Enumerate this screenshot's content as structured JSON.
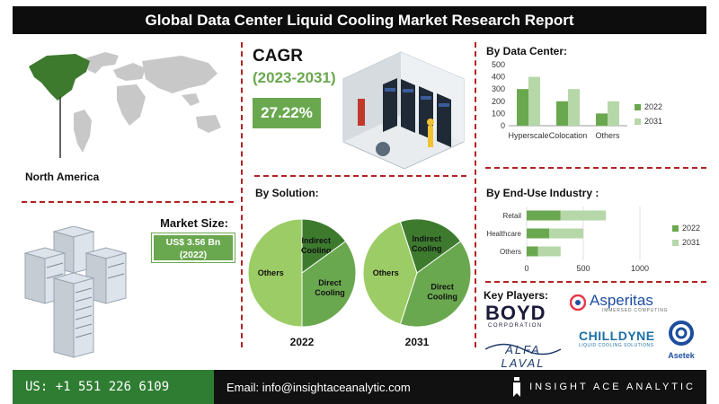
{
  "title": "Global Data Center Liquid Cooling Market Research Report",
  "region": {
    "label": "North America"
  },
  "cagr": {
    "title": "CAGR",
    "period": "(2023-2031)",
    "value": "27.22%"
  },
  "market_size": {
    "title": "Market Size:",
    "value_line1": "US$ 3.56 Bn",
    "value_line2": "(2022)"
  },
  "colors": {
    "dark_green": "#3d7a2e",
    "mid_green": "#6aa84f",
    "light_green": "#9ccc65",
    "pale_green": "#b6d7a8",
    "divider": "#b22222"
  },
  "by_data_center": {
    "title": "By Data Center:",
    "chart_data": {
      "type": "bar",
      "categories": [
        "Hyperscale",
        "Colocation",
        "Others"
      ],
      "series": [
        {
          "name": "2022",
          "values": [
            300,
            200,
            100
          ]
        },
        {
          "name": "2031",
          "values": [
            400,
            300,
            200
          ]
        }
      ],
      "yticks": [
        "500",
        "400",
        "300",
        "200",
        "100",
        "0"
      ],
      "ylim": [
        0,
        500
      ],
      "legend": "right"
    }
  },
  "by_solution": {
    "title": "By Solution:",
    "chart_data": [
      {
        "type": "pie",
        "caption": "2022",
        "slices": [
          {
            "label": "Others",
            "value": 50
          },
          {
            "label": "Indirect Cooling",
            "value": 15
          },
          {
            "label": "Direct Cooling",
            "value": 35
          }
        ]
      },
      {
        "type": "pie",
        "caption": "2031",
        "slices": [
          {
            "label": "Others",
            "value": 40
          },
          {
            "label": "Indirect Cooling",
            "value": 20
          },
          {
            "label": "Direct Cooling",
            "value": 40
          }
        ]
      }
    ]
  },
  "by_end_use": {
    "title": "By End-Use Industry :",
    "chart_data": {
      "type": "bar",
      "orientation": "horizontal",
      "categories": [
        "Retail",
        "Healthcare",
        "Others"
      ],
      "series": [
        {
          "name": "2022",
          "values": [
            300,
            200,
            100
          ]
        },
        {
          "name": "2031",
          "values": [
            400,
            300,
            200
          ]
        }
      ],
      "stacked": true,
      "xticks": [
        "0",
        "500",
        "1000"
      ],
      "xlim": [
        0,
        1000
      ],
      "legend": "right"
    }
  },
  "key_players": {
    "title": "Key Players:",
    "logos": [
      {
        "name": "BOYD",
        "sub": "CORPORATION"
      },
      {
        "name": "Asperitas",
        "sub": "IMMERSED COMPUTING"
      },
      {
        "name": "ALFA LAVAL"
      },
      {
        "name": "CHILLDYNE",
        "sub": "LIQUID COOLING SOLUTIONS"
      },
      {
        "name": "Asetek"
      }
    ]
  },
  "footer": {
    "phone": "US: +1 551 226 6109",
    "email": "Email: info@insightaceanalytic.com",
    "brand": "INSIGHT ACE ANALYTIC"
  }
}
